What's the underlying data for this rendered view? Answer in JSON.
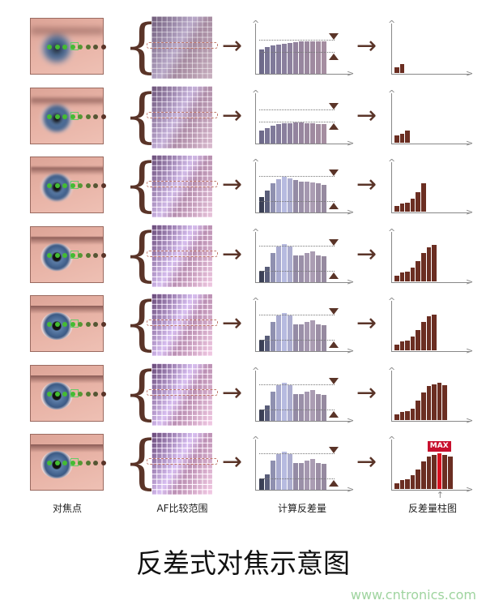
{
  "labels": {
    "focus_point": "对焦点",
    "af_range": "AF比较范围",
    "calc_contrast": "计算反差量",
    "contrast_histogram": "反差量柱图"
  },
  "title": "反差式对焦示意图",
  "watermark": "www.cntronics.com",
  "max_label": "MAX",
  "colors": {
    "arrow": "#5a3428",
    "result_bar": "#6b2e22",
    "max_bar": "#d8101e",
    "focus_box": "#66cc66"
  },
  "rows": [
    {
      "blur": 4,
      "contrast": [
        5.5,
        6,
        6.3,
        6.5,
        6.7,
        6.9,
        7.1,
        7.3,
        7.3,
        7.3,
        7.3,
        7.3
      ],
      "result": [
        1.5,
        2.2
      ]
    },
    {
      "blur": 2.5,
      "contrast": [
        3,
        3.5,
        4,
        4.3,
        4.5,
        4.6,
        4.7,
        4.7,
        4.6,
        4.5,
        4.4,
        4.3
      ],
      "result": [
        1.8,
        2.3,
        3.2
      ]
    },
    {
      "blur": 1.2,
      "contrast": [
        3.5,
        5,
        6.5,
        7.5,
        8,
        7.7,
        7.2,
        7,
        7,
        6.8,
        6.5,
        6.2
      ],
      "result": [
        1.5,
        2.0,
        2.3,
        3.3,
        5.0,
        7.2
      ]
    },
    {
      "blur": 0.5,
      "contrast": [
        2.5,
        3.5,
        6.5,
        8,
        8.5,
        8,
        6,
        6,
        6.5,
        7,
        6,
        5.8
      ],
      "result": [
        1.5,
        2.2,
        2.6,
        3.5,
        5.2,
        7.2,
        8.7,
        9.3
      ]
    },
    {
      "blur": 0.3,
      "contrast": [
        2.5,
        3.5,
        6.5,
        8,
        8.5,
        8,
        6,
        6,
        6.5,
        7,
        6,
        5.8
      ],
      "result": [
        1.5,
        2.2,
        2.6,
        3.5,
        5.2,
        7.2,
        8.7,
        9.2
      ]
    },
    {
      "blur": 0.3,
      "contrast": [
        2.5,
        3.5,
        6.5,
        8,
        8.5,
        8,
        6,
        6,
        6.5,
        7,
        6,
        5.8
      ],
      "result": [
        1.5,
        2.0,
        2.3,
        3.0,
        5.0,
        7.0,
        8.7,
        9.2,
        9.5,
        9.0
      ]
    },
    {
      "blur": 0.2,
      "contrast": [
        2.5,
        3.5,
        6.5,
        8,
        8.5,
        8,
        6,
        6,
        6.5,
        7,
        6,
        5.8
      ],
      "result": [
        1.5,
        2.2,
        2.6,
        3.5,
        5.0,
        7.0,
        8.3,
        8.8,
        9.2,
        8.8,
        8.3
      ],
      "max_index": 8
    }
  ]
}
